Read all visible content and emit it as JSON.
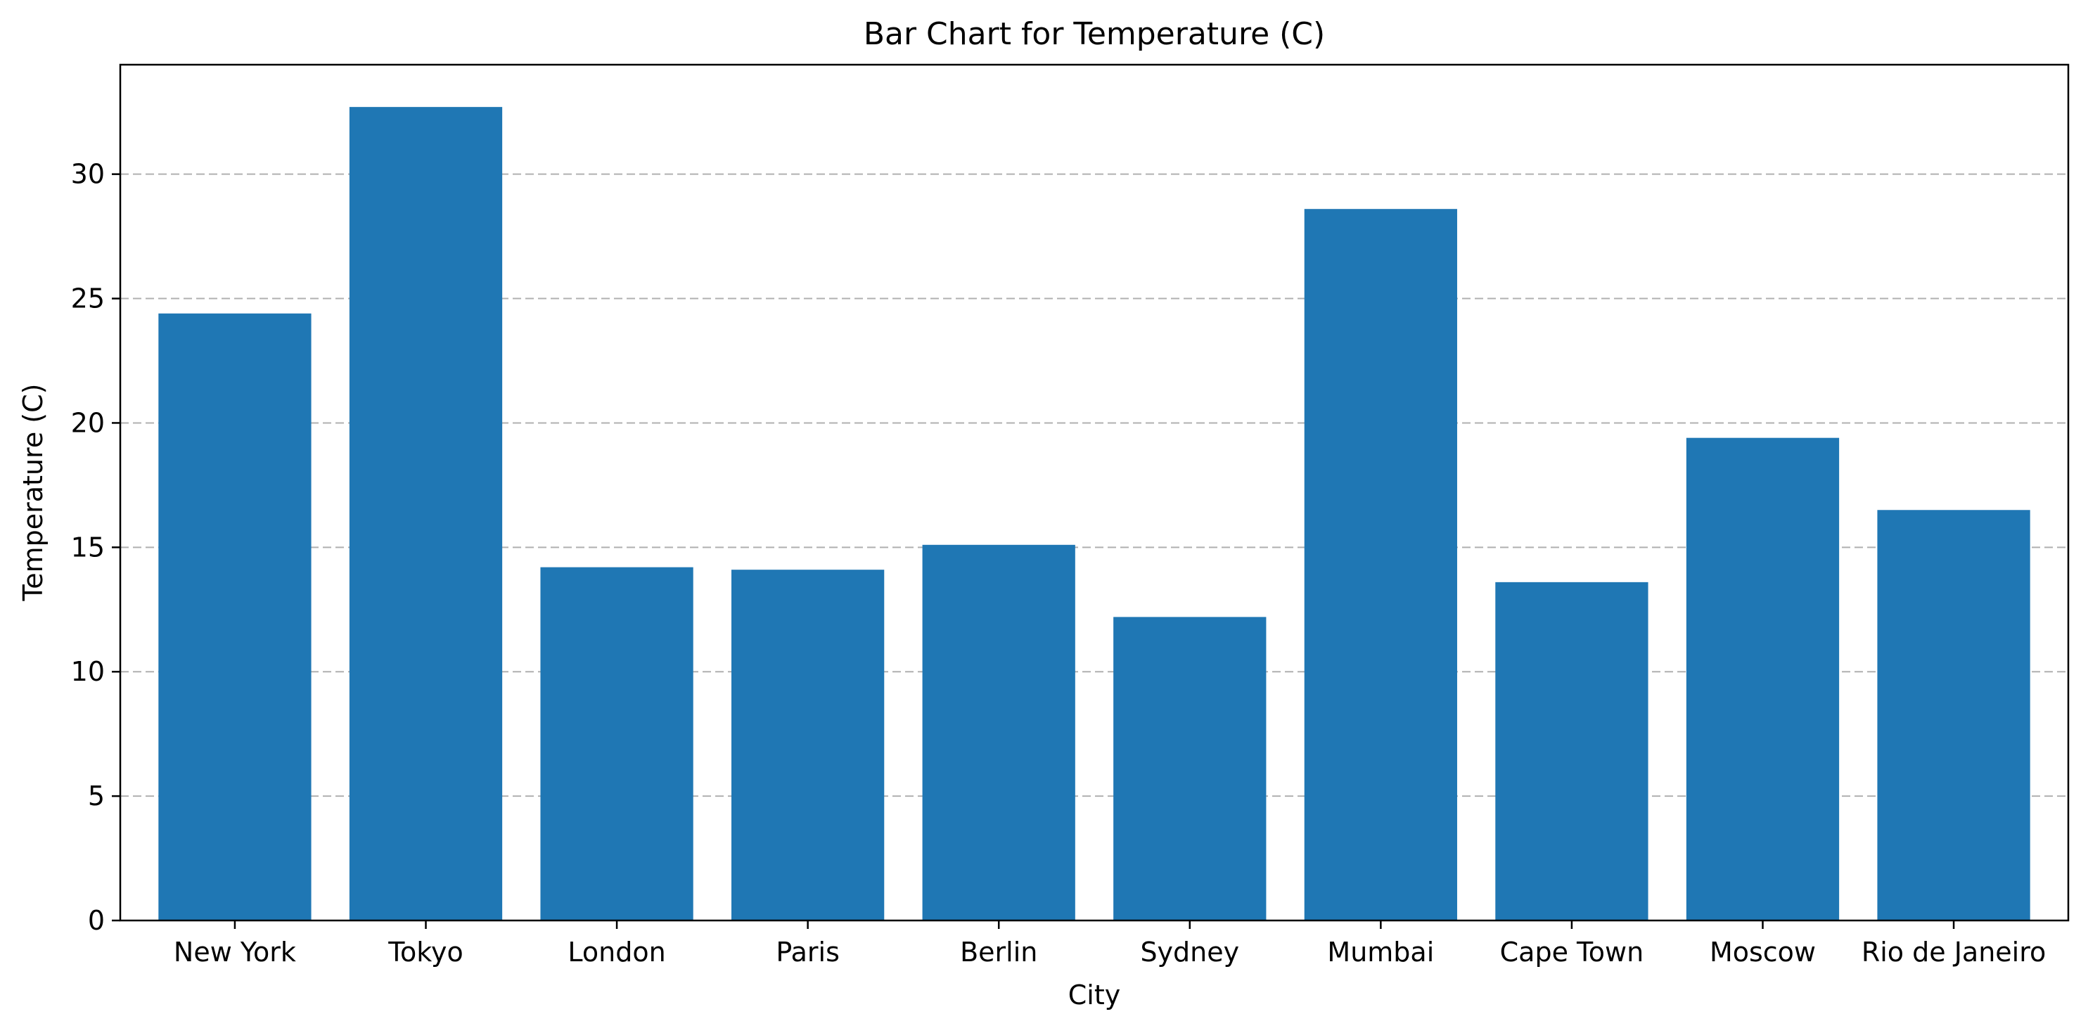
{
  "chart_data": {
    "type": "bar",
    "title": "Bar Chart for Temperature (C)",
    "xlabel": "City",
    "ylabel": "Temperature (C)",
    "categories": [
      "New York",
      "Tokyo",
      "London",
      "Paris",
      "Berlin",
      "Sydney",
      "Mumbai",
      "Cape Town",
      "Moscow",
      "Rio de Janeiro"
    ],
    "values": [
      24.4,
      32.7,
      14.2,
      14.1,
      15.1,
      12.2,
      28.6,
      13.6,
      19.4,
      16.5
    ],
    "ylim": [
      0,
      34.4
    ],
    "yticks": [
      0,
      5,
      10,
      15,
      20,
      25,
      30
    ],
    "grid": "y-dashed",
    "legend": "none",
    "bar_color": "#1f77b4"
  }
}
